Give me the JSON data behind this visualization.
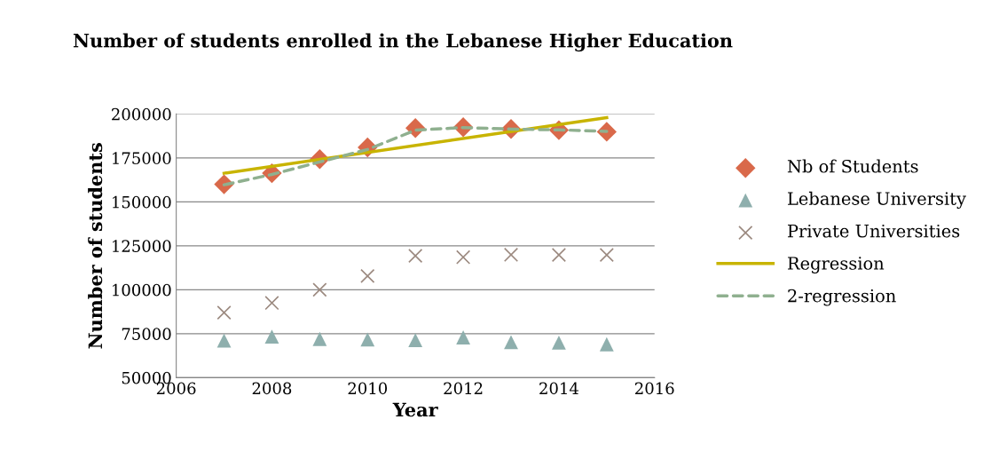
{
  "chart_data": {
    "type": "scatter",
    "title": "Number of students enrolled in the Lebanese Higher Education",
    "xlabel": "Year",
    "ylabel": "Number of students",
    "x": [
      2007,
      2008,
      2009,
      2010,
      2011,
      2012,
      2013,
      2014,
      2015
    ],
    "series": [
      {
        "name": "Nb of Students",
        "color": "#d9694a",
        "marker": "diamond",
        "values": [
          160000,
          166300,
          174300,
          181000,
          192000,
          192500,
          191500,
          190800,
          189900
        ]
      },
      {
        "name": "Lebanese University",
        "color": "#8eafad",
        "marker": "triangle",
        "values": [
          71100,
          73300,
          72000,
          71700,
          71300,
          72900,
          70200,
          69900,
          69000
        ]
      },
      {
        "name": "Private Universities",
        "color": "#9c8a80",
        "marker": "cross",
        "values": [
          87000,
          92500,
          100000,
          107800,
          119300,
          118500,
          119900,
          119800,
          119800
        ]
      },
      {
        "name": "Regression",
        "type": "line",
        "color": "#c8b400",
        "line_style": "solid",
        "x": [
          2007,
          2015
        ],
        "values": [
          166300,
          197900
        ]
      },
      {
        "name": "2-regression",
        "type": "line",
        "color": "#8fb08f",
        "line_style": "dashed",
        "values": [
          159700,
          165600,
          172700,
          179800,
          190800,
          192300,
          191400,
          191000,
          190100
        ]
      }
    ],
    "xlim": [
      2006,
      2016
    ],
    "xticks": [
      2006,
      2008,
      2010,
      2012,
      2014,
      2016
    ],
    "ylim": [
      50000,
      200000
    ],
    "yticks": [
      50000,
      75000,
      100000,
      125000,
      150000,
      175000,
      200000
    ],
    "grid": "y",
    "legend": "right"
  }
}
